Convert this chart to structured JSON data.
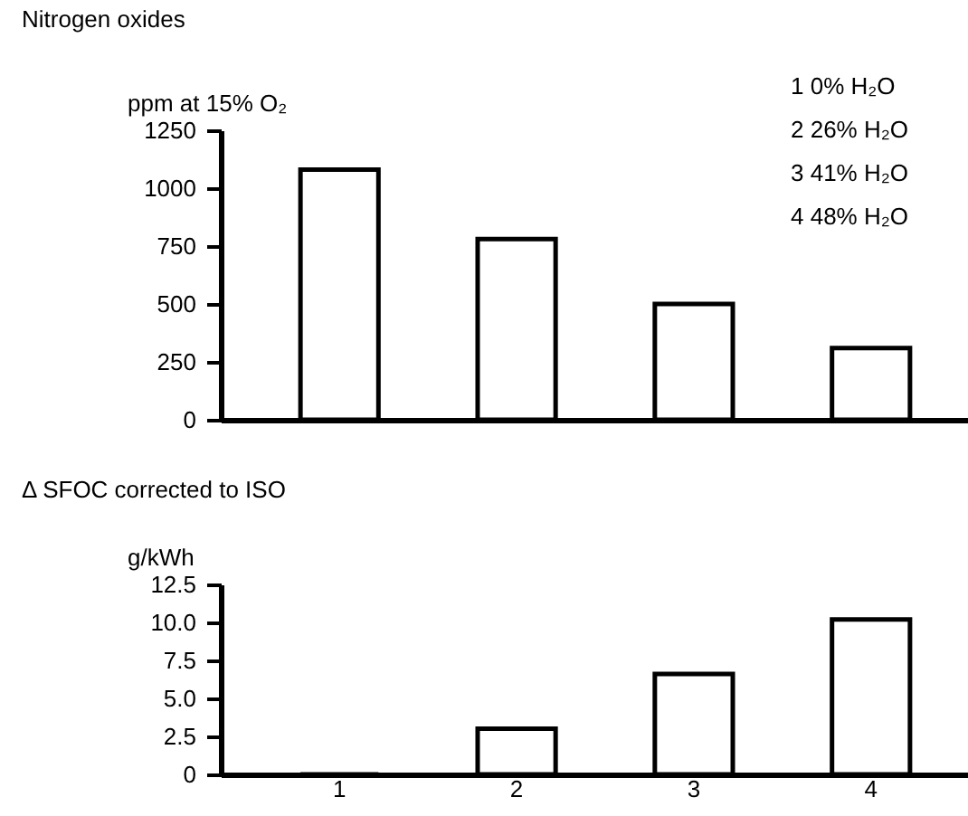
{
  "chart_data": [
    {
      "type": "bar",
      "title": "Nitrogen oxides",
      "ylabel": "ppm at 15% O₂",
      "categories": [
        "1",
        "2",
        "3",
        "4"
      ],
      "values": [
        1080,
        780,
        500,
        310
      ],
      "color": "#000000",
      "ylim": [
        0,
        1250
      ],
      "yticks": [
        0,
        250,
        500,
        750,
        1000,
        1250
      ],
      "grid": false,
      "tick_labels": "y",
      "annotations": [
        "1   0% H₂O",
        "2  26% H₂O",
        "3  41% H₂O",
        "4  48% H₂O"
      ]
    },
    {
      "type": "bar",
      "title": "Δ SFOC corrected to ISO",
      "ylabel": "g/kWh",
      "categories": [
        "1",
        "2",
        "3",
        "4"
      ],
      "values": [
        0,
        3.0,
        6.6,
        10.2
      ],
      "color": "#000000",
      "ylim": [
        0,
        12.5
      ],
      "yticks": [
        0,
        {
          "value": 2.5,
          "label": "2.5"
        },
        {
          "value": 5,
          "label": "5.0"
        },
        {
          "value": 7.5,
          "label": "7.5"
        },
        {
          "value": 10,
          "label": "10.0"
        },
        {
          "value": 12.5,
          "label": "12.5"
        }
      ],
      "grid": false
    }
  ]
}
